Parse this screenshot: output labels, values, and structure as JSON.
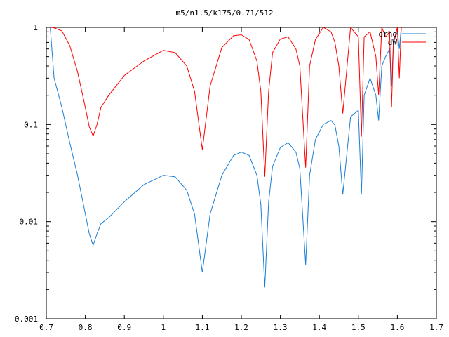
{
  "chart_data": {
    "type": "line",
    "title": "m5/n1.5/k175/0.71/512",
    "xlabel": "",
    "ylabel": "",
    "xlim": [
      0.7,
      1.7
    ],
    "ylim": [
      0.001,
      1
    ],
    "yscale": "log",
    "grid": false,
    "legend": "top-right",
    "x_ticks": [
      "0.7",
      "0.8",
      "0.9",
      "1",
      "1.1",
      "1.2",
      "1.3",
      "1.4",
      "1.5",
      "1.6",
      "1.7"
    ],
    "y_ticks": [
      "0.001",
      "0.01",
      "0.1",
      "1"
    ],
    "series": [
      {
        "name": "drho",
        "color": "#1a7fd6",
        "x": [
          0.71,
          0.72,
          0.74,
          0.76,
          0.78,
          0.8,
          0.81,
          0.82,
          0.83,
          0.84,
          0.86,
          0.9,
          0.95,
          1.0,
          1.03,
          1.06,
          1.08,
          1.1,
          1.12,
          1.15,
          1.18,
          1.2,
          1.22,
          1.24,
          1.25,
          1.26,
          1.27,
          1.28,
          1.3,
          1.32,
          1.34,
          1.35,
          1.365,
          1.375,
          1.39,
          1.41,
          1.43,
          1.44,
          1.45,
          1.46,
          1.48,
          1.5,
          1.508,
          1.515,
          1.53,
          1.545,
          1.552,
          1.56,
          1.57,
          1.58,
          1.585,
          1.59,
          1.6,
          1.605,
          1.61
        ],
        "y": [
          1.0,
          0.3,
          0.15,
          0.065,
          0.03,
          0.012,
          0.0075,
          0.0057,
          0.0075,
          0.0095,
          0.011,
          0.016,
          0.024,
          0.03,
          0.029,
          0.021,
          0.012,
          0.003,
          0.012,
          0.03,
          0.048,
          0.052,
          0.048,
          0.03,
          0.015,
          0.0021,
          0.016,
          0.037,
          0.058,
          0.065,
          0.052,
          0.035,
          0.0036,
          0.03,
          0.07,
          0.1,
          0.11,
          0.098,
          0.06,
          0.019,
          0.12,
          0.14,
          0.019,
          0.2,
          0.3,
          0.2,
          0.11,
          0.4,
          0.5,
          0.6,
          0.25,
          0.7,
          0.9,
          0.6,
          1.0
        ]
      },
      {
        "name": "dW",
        "color": "#ff0000",
        "x": [
          0.71,
          0.72,
          0.74,
          0.76,
          0.78,
          0.8,
          0.81,
          0.82,
          0.83,
          0.84,
          0.86,
          0.9,
          0.95,
          1.0,
          1.03,
          1.06,
          1.08,
          1.1,
          1.12,
          1.15,
          1.18,
          1.2,
          1.22,
          1.24,
          1.25,
          1.26,
          1.27,
          1.28,
          1.3,
          1.32,
          1.34,
          1.35,
          1.365,
          1.375,
          1.39,
          1.41,
          1.43,
          1.44,
          1.45,
          1.46,
          1.48,
          1.5,
          1.508,
          1.515,
          1.53,
          1.545,
          1.552,
          1.56,
          1.57,
          1.58,
          1.585,
          1.59,
          1.6,
          1.605,
          1.61
        ],
        "y": [
          1.0,
          0.99,
          0.92,
          0.65,
          0.35,
          0.15,
          0.095,
          0.076,
          0.1,
          0.15,
          0.2,
          0.32,
          0.45,
          0.58,
          0.55,
          0.4,
          0.22,
          0.055,
          0.25,
          0.62,
          0.82,
          0.84,
          0.75,
          0.45,
          0.22,
          0.029,
          0.22,
          0.55,
          0.76,
          0.8,
          0.6,
          0.4,
          0.036,
          0.4,
          0.75,
          1.0,
          0.9,
          0.7,
          0.4,
          0.13,
          1.0,
          0.8,
          0.075,
          0.8,
          0.9,
          0.5,
          0.2,
          1.0,
          0.8,
          0.9,
          0.15,
          0.7,
          1.0,
          0.3,
          1.0
        ]
      }
    ]
  }
}
